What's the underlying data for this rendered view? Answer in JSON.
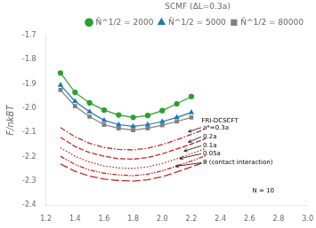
{
  "chart_data": {
    "type": "line",
    "ylabel": "F/nkBT",
    "legend": "upper right",
    "legend_title": "SCMF (ΔL=0.3a)",
    "grid": false,
    "xlim": [
      1.2,
      3.0
    ],
    "ylim": [
      -2.4,
      -1.7
    ],
    "xticks": [
      1.2,
      1.4,
      1.6,
      1.8,
      {
        "value": 2,
        "label": "2.0"
      },
      2.2,
      2.4,
      2.6,
      2.8,
      {
        "value": 3,
        "label": "3.0"
      }
    ],
    "yticks": [
      -2.4,
      -2.3,
      -2.2,
      -2.1,
      {
        "value": -2,
        "label": "-2.0"
      },
      -1.9,
      -1.8,
      -1.7
    ],
    "series": [
      {
        "name": "N̄^1/2 = 2000",
        "color": "#2ca02c",
        "marker": "circle",
        "line_style": "solid",
        "x": [
          1.3,
          1.4,
          1.5,
          1.6,
          1.7,
          1.8,
          1.9,
          2.0,
          2.1,
          2.2
        ],
        "values": [
          -1.855,
          -1.935,
          -1.978,
          -2.008,
          -2.028,
          -2.038,
          -2.03,
          -2.01,
          -1.982,
          -1.952
        ]
      },
      {
        "name": "N̄^1/2 = 5000",
        "color": "#1f77b4",
        "marker": "triangle",
        "line_style": "solid",
        "x": [
          1.3,
          1.4,
          1.5,
          1.6,
          1.7,
          1.8,
          1.9,
          2.0,
          2.1,
          2.2
        ],
        "values": [
          -1.905,
          -1.972,
          -2.015,
          -2.05,
          -2.068,
          -2.075,
          -2.068,
          -2.055,
          -2.038,
          -2.018
        ]
      },
      {
        "name": "N̄^1/2 = 80000",
        "color": "#808080",
        "marker": "square",
        "line_style": "solid",
        "x": [
          1.3,
          1.4,
          1.5,
          1.6,
          1.7,
          1.8,
          1.9,
          2.0,
          2.1,
          2.2
        ],
        "values": [
          -1.925,
          -1.992,
          -2.035,
          -2.068,
          -2.083,
          -2.09,
          -2.083,
          -2.07,
          -2.055,
          -2.038
        ]
      },
      {
        "color": "#cc2222",
        "line_style": "dashdot",
        "x": [
          1.3,
          1.4,
          1.5,
          1.6,
          1.7,
          1.8,
          1.9,
          2.0,
          2.1,
          2.2,
          2.3
        ],
        "values": [
          -2.08,
          -2.118,
          -2.145,
          -2.162,
          -2.17,
          -2.172,
          -2.165,
          -2.15,
          -2.13,
          -2.108,
          -2.085
        ]
      },
      {
        "color": "#cc2222",
        "line_style": "dashed",
        "x": [
          1.3,
          1.4,
          1.5,
          1.6,
          1.7,
          1.8,
          1.9,
          2.0,
          2.1,
          2.2,
          2.3
        ],
        "values": [
          -2.12,
          -2.158,
          -2.183,
          -2.198,
          -2.208,
          -2.21,
          -2.203,
          -2.188,
          -2.168,
          -2.148,
          -2.125
        ]
      },
      {
        "color": "#cc2222",
        "line_style": "dotted",
        "x": [
          1.3,
          1.4,
          1.5,
          1.6,
          1.7,
          1.8,
          1.9,
          2.0,
          2.1,
          2.2,
          2.3
        ],
        "values": [
          -2.163,
          -2.198,
          -2.222,
          -2.238,
          -2.246,
          -2.248,
          -2.242,
          -2.228,
          -2.208,
          -2.188,
          -2.165
        ]
      },
      {
        "color": "#cc2222",
        "line_style": "dashdotdot",
        "x": [
          1.3,
          1.4,
          1.5,
          1.6,
          1.7,
          1.8,
          1.9,
          2.0,
          2.1,
          2.2,
          2.3
        ],
        "values": [
          -2.198,
          -2.232,
          -2.255,
          -2.268,
          -2.275,
          -2.278,
          -2.272,
          -2.258,
          -2.238,
          -2.218,
          -2.196
        ]
      },
      {
        "color": "#cc2222",
        "line_style": "longdash",
        "x": [
          1.3,
          1.4,
          1.5,
          1.6,
          1.7,
          1.8,
          1.9,
          2.0,
          2.1,
          2.2,
          2.3
        ],
        "values": [
          -2.23,
          -2.26,
          -2.28,
          -2.292,
          -2.298,
          -2.3,
          -2.295,
          -2.282,
          -2.263,
          -2.242,
          -2.22
        ]
      }
    ],
    "annotations": [
      {
        "text": "FRI-DCSCFT",
        "x": 2.27,
        "y": -2.052
      },
      {
        "text": "a*=0.3a",
        "x": 2.28,
        "y": -2.08,
        "arrow_to": [
          2.18,
          -2.097
        ]
      },
      {
        "text": "0.2a",
        "x": 2.28,
        "y": -2.118,
        "arrow_to": [
          2.18,
          -2.14
        ]
      },
      {
        "text": "0.1a",
        "x": 2.28,
        "y": -2.155,
        "arrow_to": [
          2.15,
          -2.177
        ]
      },
      {
        "text": "0.05a",
        "x": 2.28,
        "y": -2.188,
        "arrow_to": [
          2.12,
          -2.208
        ]
      },
      {
        "text": "0 (contact interaction)",
        "x": 2.28,
        "y": -2.225,
        "arrow_to": [
          2.09,
          -2.24
        ]
      },
      {
        "text": "N = 10",
        "x": 2.62,
        "y": -2.34
      }
    ]
  }
}
